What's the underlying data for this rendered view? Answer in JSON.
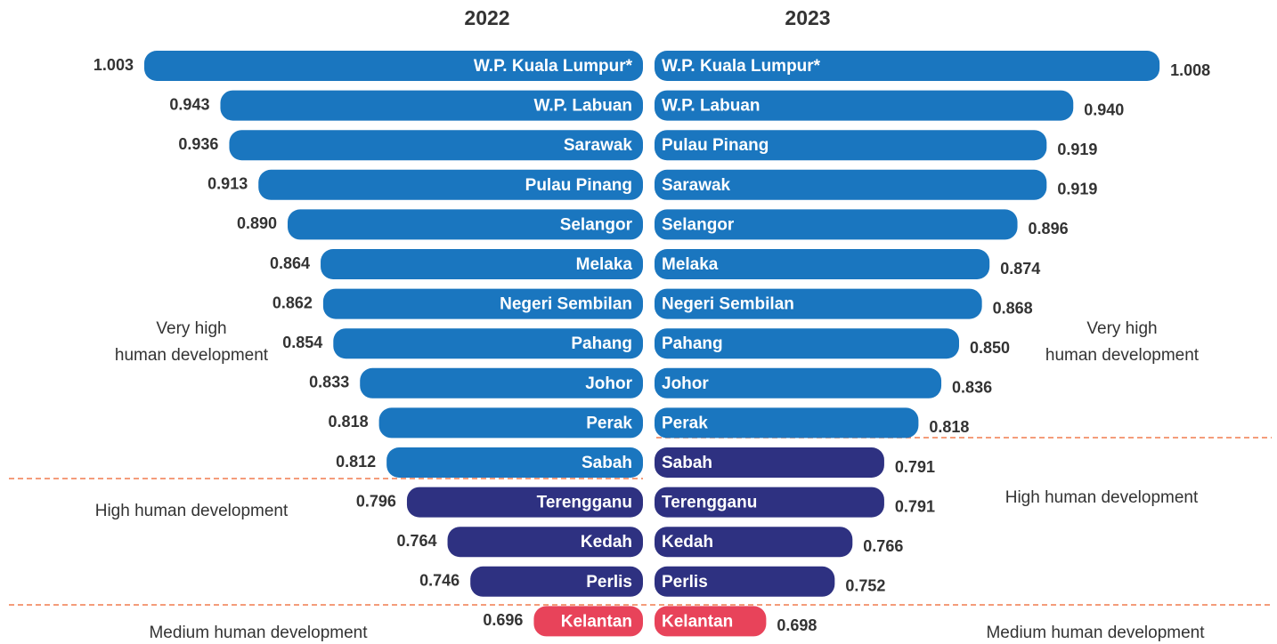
{
  "chart_data": [
    {
      "type": "bar",
      "title": "2022",
      "side": "left",
      "xlim": [
        0.61,
        1.01
      ],
      "categories": [
        "W.P. Kuala Lumpur*",
        "W.P. Labuan",
        "Sarawak",
        "Pulau Pinang",
        "Selangor",
        "Melaka",
        "Negeri Sembilan",
        "Pahang",
        "Johor",
        "Perak",
        "Sabah",
        "Terengganu",
        "Kedah",
        "Perlis",
        "Kelantan"
      ],
      "values": [
        1.003,
        0.943,
        0.936,
        0.913,
        0.89,
        0.864,
        0.862,
        0.854,
        0.833,
        0.818,
        0.812,
        0.796,
        0.764,
        0.746,
        0.696
      ],
      "value_labels": [
        "1.003",
        "0.943",
        "0.936",
        "0.913",
        "0.890",
        "0.864",
        "0.862",
        "0.854",
        "0.833",
        "0.818",
        "0.812",
        "0.796",
        "0.764",
        "0.746",
        "0.696"
      ],
      "colors": [
        "#1a76bf",
        "#1a76bf",
        "#1a76bf",
        "#1a76bf",
        "#1a76bf",
        "#1a76bf",
        "#1a76bf",
        "#1a76bf",
        "#1a76bf",
        "#1a76bf",
        "#1a76bf",
        "#2e3181",
        "#2e3181",
        "#2e3181",
        "#e8435a"
      ],
      "annotations": [
        [
          "Very high",
          "human development"
        ],
        [
          "High human development"
        ],
        [
          "Medium human development"
        ]
      ]
    },
    {
      "type": "bar",
      "title": "2023",
      "side": "right",
      "xlim": [
        0.61,
        1.01
      ],
      "categories": [
        "W.P. Kuala Lumpur*",
        "W.P. Labuan",
        "Pulau Pinang",
        "Sarawak",
        "Selangor",
        "Melaka",
        "Negeri Sembilan",
        "Pahang",
        "Johor",
        "Perak",
        "Sabah",
        "Terengganu",
        "Kedah",
        "Perlis",
        "Kelantan"
      ],
      "values": [
        1.008,
        0.94,
        0.919,
        0.919,
        0.896,
        0.874,
        0.868,
        0.85,
        0.836,
        0.818,
        0.791,
        0.791,
        0.766,
        0.752,
        0.698
      ],
      "value_labels": [
        "1.008",
        "0.940",
        "0.919",
        "0.919",
        "0.896",
        "0.874",
        "0.868",
        "0.850",
        "0.836",
        "0.818",
        "0.791",
        "0.791",
        "0.766",
        "0.752",
        "0.698"
      ],
      "colors": [
        "#1a76bf",
        "#1a76bf",
        "#1a76bf",
        "#1a76bf",
        "#1a76bf",
        "#1a76bf",
        "#1a76bf",
        "#1a76bf",
        "#1a76bf",
        "#1a76bf",
        "#2e3181",
        "#2e3181",
        "#2e3181",
        "#2e3181",
        "#e8435a"
      ],
      "annotations": [
        [
          "Very high",
          "human development"
        ],
        [
          "High human development"
        ],
        [
          "Medium human development"
        ]
      ]
    }
  ]
}
